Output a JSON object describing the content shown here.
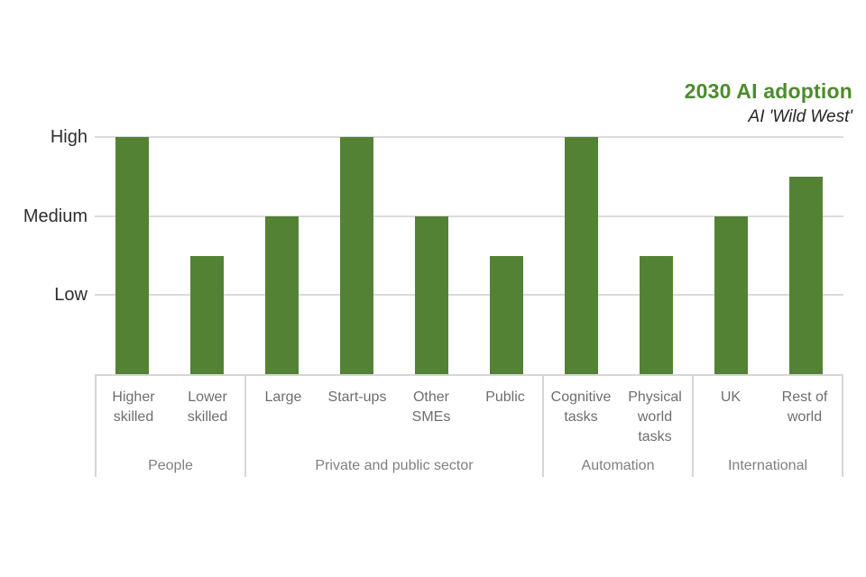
{
  "title": "2030 AI adoption",
  "subtitle": "AI 'Wild West'",
  "colors": {
    "bar": "#548235",
    "title_green": "#4d8b2d",
    "gridline": "#dbdbdb",
    "axis_line": "#d6d6d6",
    "y_label_text": "#2e2e2e",
    "x_label_text": "#6e6e6e",
    "group_label_text": "#808080"
  },
  "chart_data": {
    "type": "bar",
    "title": "2030 AI adoption",
    "subtitle": "AI 'Wild West'",
    "xlabel": "",
    "ylabel": "",
    "grid": "horizontal",
    "legend": "none",
    "y_axis": {
      "min": 0,
      "max": 3,
      "ticks": [
        {
          "label": "High",
          "value": 3
        },
        {
          "label": "Medium",
          "value": 2
        },
        {
          "label": "Low",
          "value": 1
        }
      ]
    },
    "value_scale_note": "1 = Low, 2 = Medium, 3 = High (qualitative scale)",
    "categories": [
      "Higher skilled",
      "Lower skilled",
      "Large",
      "Start-ups",
      "Other SMEs",
      "Public",
      "Cognitive tasks",
      "Physical world tasks",
      "UK",
      "Rest of world"
    ],
    "values": [
      3,
      1.5,
      2,
      3,
      2,
      1.5,
      3,
      1.5,
      2,
      2.5
    ],
    "groups": [
      {
        "label": "People",
        "bars": [
          {
            "label": "Higher skilled",
            "value": 3
          },
          {
            "label": "Lower skilled",
            "value": 1.5
          }
        ]
      },
      {
        "label": "Private and public sector",
        "bars": [
          {
            "label": "Large",
            "value": 2
          },
          {
            "label": "Start-ups",
            "value": 3
          },
          {
            "label": "Other SMEs",
            "value": 2
          },
          {
            "label": "Public",
            "value": 1.5
          }
        ]
      },
      {
        "label": "Automation",
        "bars": [
          {
            "label": "Cognitive tasks",
            "value": 3
          },
          {
            "label": "Physical world tasks",
            "value": 1.5
          }
        ]
      },
      {
        "label": "International",
        "bars": [
          {
            "label": "UK",
            "value": 2
          },
          {
            "label": "Rest of world",
            "value": 2.5
          }
        ]
      }
    ]
  }
}
